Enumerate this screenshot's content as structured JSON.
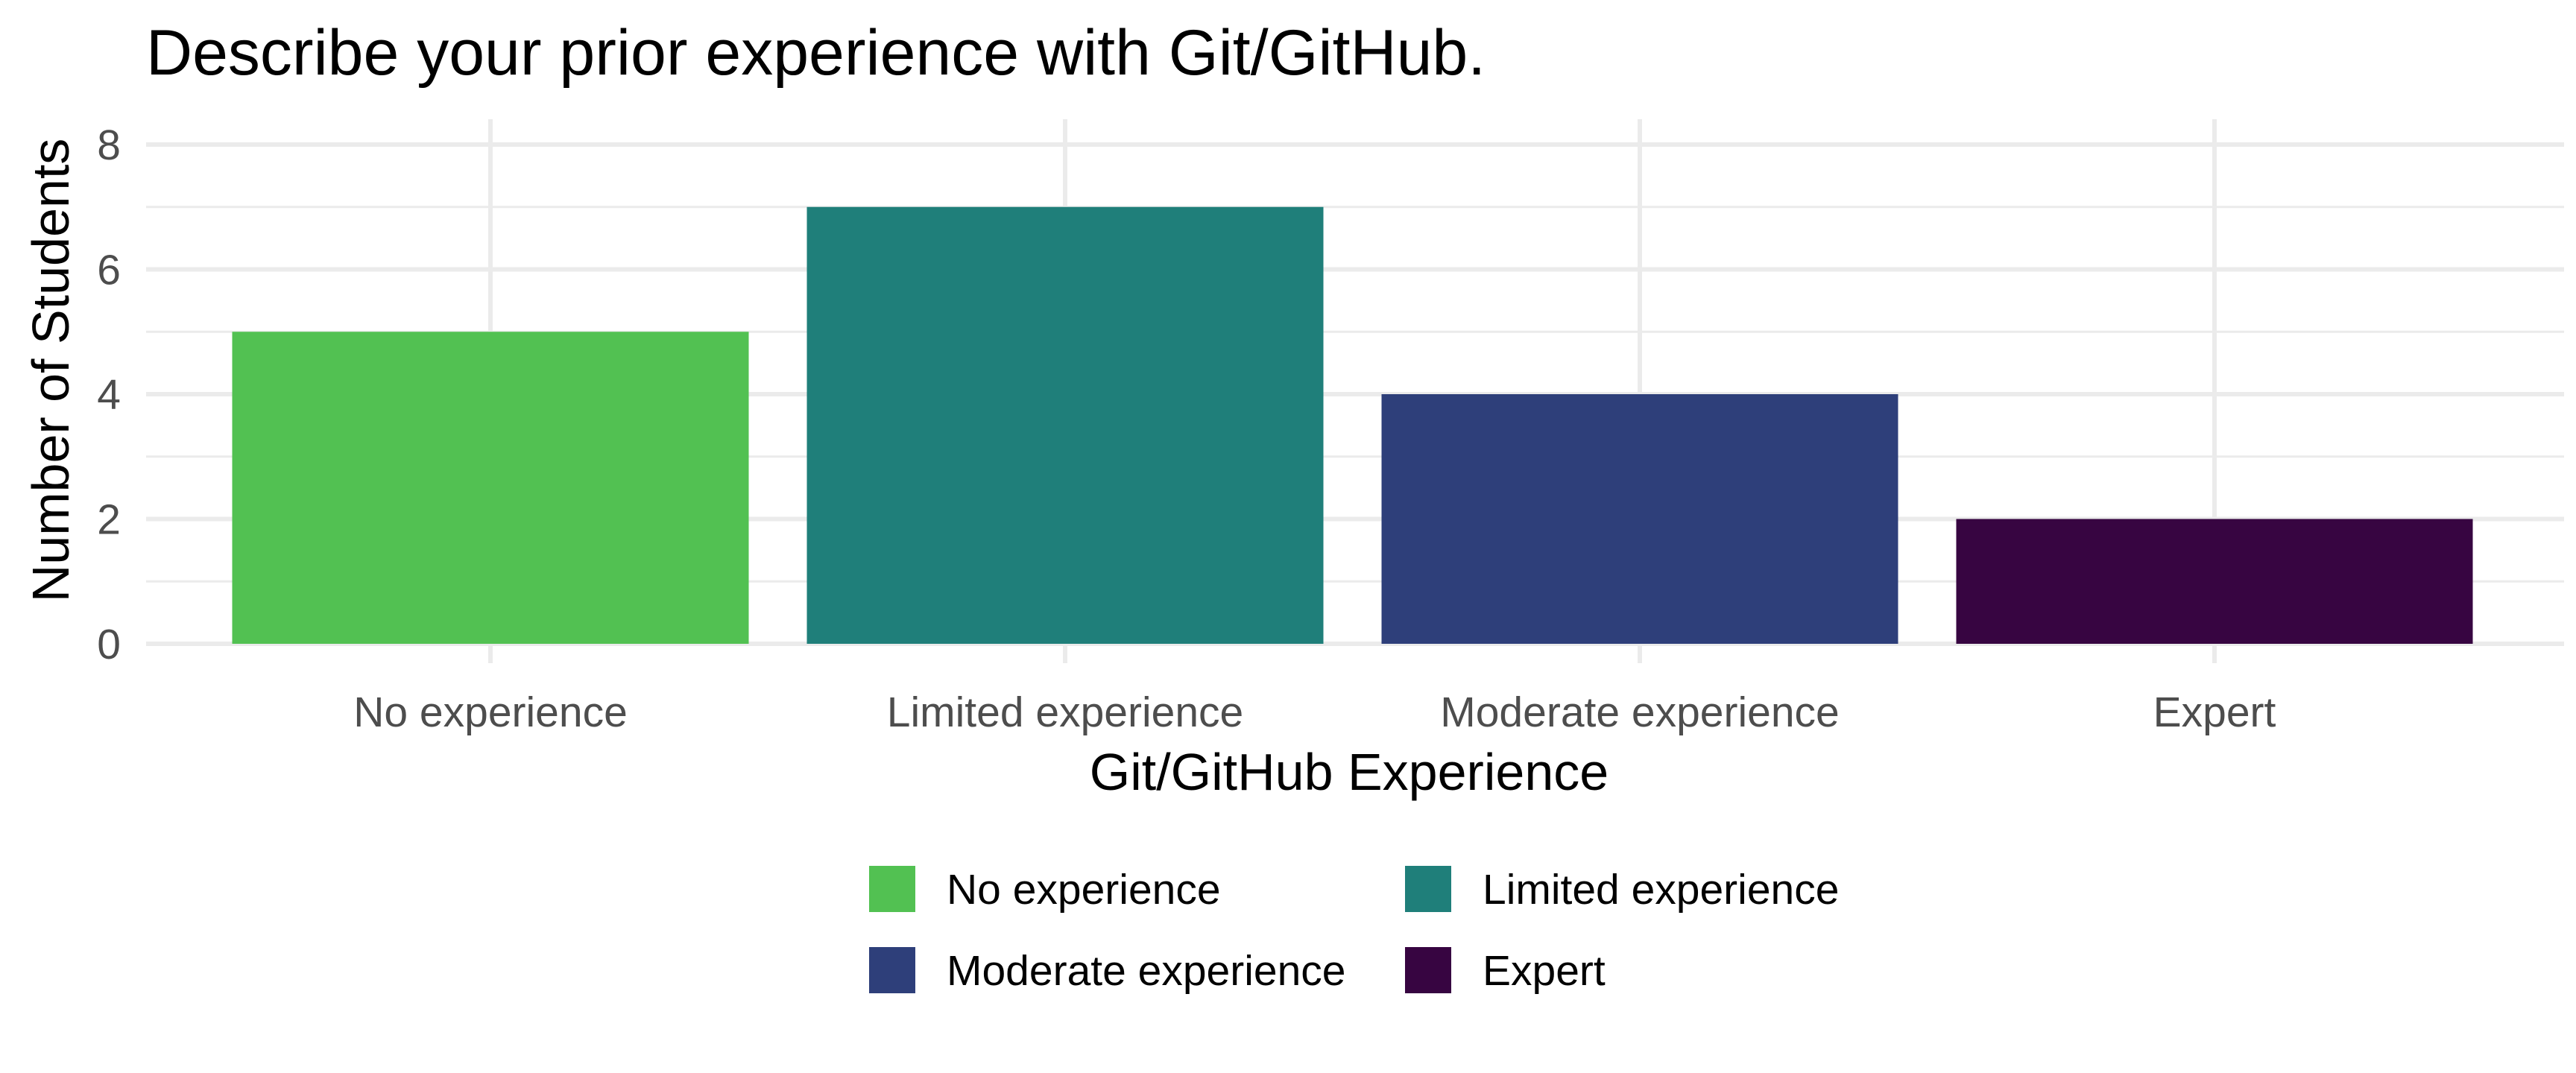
{
  "chart_data": {
    "type": "bar",
    "title": "Describe your prior experience with Git/GitHub.",
    "xlabel": "Git/GitHub Experience",
    "ylabel": "Number of Students",
    "categories": [
      "No experience",
      "Limited experience",
      "Moderate experience",
      "Expert"
    ],
    "values": [
      5,
      7,
      4,
      2
    ],
    "colors": [
      "#52c152",
      "#1f7f7a",
      "#2e3f7a",
      "#370541"
    ],
    "ylim": [
      0,
      8
    ],
    "yticks": [
      0,
      2,
      4,
      6,
      8
    ],
    "ytick_labels": [
      "0",
      "2",
      "4",
      "6",
      "8"
    ],
    "grid": true,
    "legend": {
      "placement": "bottom",
      "columns": 2,
      "entries": [
        "No experience",
        "Limited experience",
        "Moderate experience",
        "Expert"
      ]
    }
  }
}
